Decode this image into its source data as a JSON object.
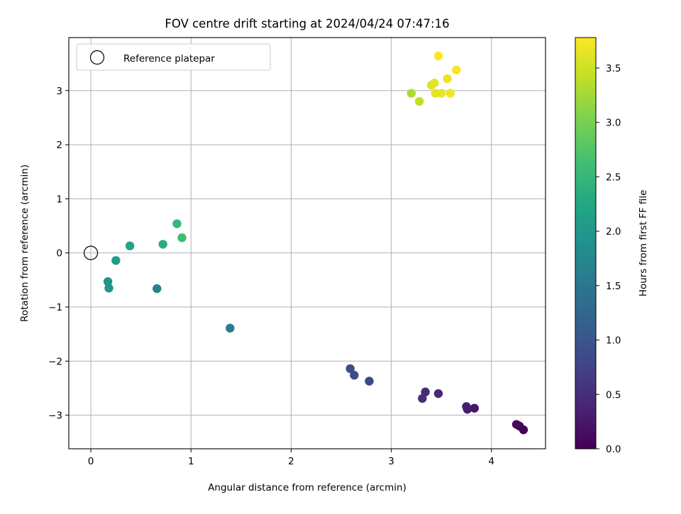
{
  "chart_data": {
    "type": "scatter",
    "title": "FOV centre drift starting at 2024/04/24 07:47:16",
    "xlabel": "Angular distance from reference (arcmin)",
    "ylabel": "Rotation from reference (arcmin)",
    "xlim": [
      -0.22,
      4.54
    ],
    "ylim": [
      -3.62,
      3.98
    ],
    "x_ticks": [
      0,
      1,
      2,
      3,
      4
    ],
    "x_tick_labels": [
      "0",
      "1",
      "2",
      "3",
      "4"
    ],
    "y_ticks": [
      -3,
      -2,
      -1,
      0,
      1,
      2,
      3
    ],
    "y_tick_labels": [
      "−3",
      "−2",
      "−1",
      "0",
      "1",
      "2",
      "3"
    ],
    "grid": true,
    "legend": {
      "position": "top-left",
      "entries": [
        {
          "label": "Reference platepar",
          "marker": "open-circle",
          "x": 0,
          "y": 0
        }
      ]
    },
    "colorbar": {
      "label": "Hours from first FF file",
      "colormap": "viridis",
      "range": [
        0,
        3.78
      ],
      "ticks": [
        0,
        0.5,
        1,
        1.5,
        2,
        2.5,
        3,
        3.5
      ],
      "tick_labels": [
        "0.0",
        "0.5",
        "1.0",
        "1.5",
        "2.0",
        "2.5",
        "3.0",
        "3.5"
      ]
    },
    "series": [
      {
        "x": [
          4.32,
          4.28,
          4.25,
          3.83,
          3.76,
          3.75,
          3.47,
          3.34,
          3.31,
          2.78,
          2.63,
          2.59,
          1.39,
          0.66,
          0.18,
          0.17,
          0.25,
          0.39,
          0.72,
          0.86,
          0.91,
          3.2,
          3.28,
          3.4,
          3.43,
          3.44,
          3.5,
          3.56,
          3.59,
          3.65,
          3.47
        ],
        "y": [
          -3.27,
          -3.2,
          -3.17,
          -2.87,
          -2.89,
          -2.84,
          -2.6,
          -2.57,
          -2.69,
          -2.37,
          -2.26,
          -2.14,
          -1.39,
          -0.66,
          -0.65,
          -0.53,
          -0.14,
          0.13,
          0.16,
          0.54,
          0.28,
          2.95,
          2.8,
          3.1,
          3.14,
          2.95,
          2.95,
          3.22,
          2.95,
          3.38,
          3.64
        ],
        "c": [
          0.0,
          0.05,
          0.1,
          0.22,
          0.28,
          0.32,
          0.42,
          0.48,
          0.5,
          0.8,
          0.85,
          0.9,
          1.6,
          1.7,
          1.95,
          1.95,
          2.05,
          2.2,
          2.35,
          2.5,
          2.6,
          3.3,
          3.4,
          3.6,
          3.62,
          3.65,
          3.66,
          3.68,
          3.7,
          3.74,
          3.78
        ]
      }
    ]
  }
}
